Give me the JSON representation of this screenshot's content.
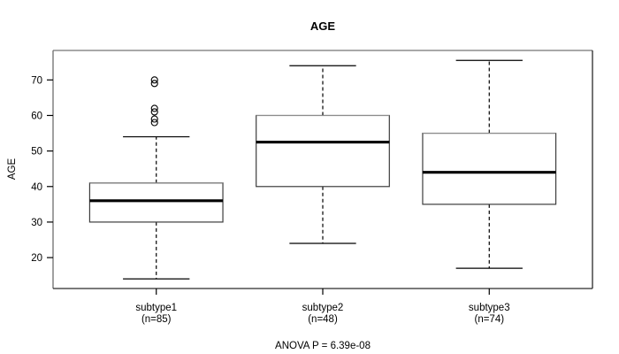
{
  "chart_data": {
    "type": "boxplot",
    "title": "AGE",
    "ylabel": "AGE",
    "annotation": "ANOVA P = 6.39e-08",
    "yticks": [
      20,
      30,
      40,
      50,
      60,
      70
    ],
    "ylim": [
      11.3,
      78.3
    ],
    "xlim": [
      0.38,
      3.62
    ],
    "grid": false,
    "categories": [
      "subtype1",
      "subtype2",
      "subtype3"
    ],
    "category_sublabels": [
      "(n=85)",
      "(n=48)",
      "(n=74)"
    ],
    "series": [
      {
        "name": "subtype1",
        "n": 85,
        "whisker_low": 14,
        "q1": 30,
        "median": 36,
        "q3": 41,
        "whisker_high": 54,
        "outliers": [
          58,
          59,
          61,
          62,
          69,
          70
        ]
      },
      {
        "name": "subtype2",
        "n": 48,
        "whisker_low": 24,
        "q1": 40,
        "median": 52.5,
        "q3": 60,
        "whisker_high": 74,
        "outliers": []
      },
      {
        "name": "subtype3",
        "n": 74,
        "whisker_low": 17,
        "q1": 35,
        "median": 44,
        "q3": 55,
        "whisker_high": 75.5,
        "outliers": []
      }
    ],
    "colors": {
      "background": "#ffffff",
      "box_fill": "#ffffff",
      "box_border": "#3d3d3d",
      "box_border_top": "#8c8c8c",
      "median": "#000000",
      "whisker": "#000000",
      "outlier": "#000000",
      "frame_top": "#8c8c8c",
      "frame_side": "#2a2a2a",
      "tick": "#000000",
      "text": "#000000"
    }
  }
}
